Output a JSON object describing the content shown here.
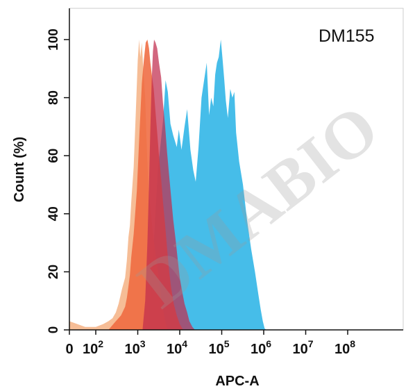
{
  "watermark": {
    "text": "DMABIO",
    "color": "#9a9a9a"
  },
  "chart_data": {
    "type": "area",
    "title": "DM155",
    "xlabel": "APC-A",
    "ylabel": "Count  (%)",
    "x_scale": "biexponential",
    "xlim": [
      0,
      100000000
    ],
    "ylim": [
      0,
      100
    ],
    "x_ticks": [
      {
        "value": 0,
        "base": "0",
        "exp": ""
      },
      {
        "value": 100,
        "base": "10",
        "exp": "2"
      },
      {
        "value": 1000,
        "base": "10",
        "exp": "3"
      },
      {
        "value": 10000,
        "base": "10",
        "exp": "4"
      },
      {
        "value": 100000,
        "base": "10",
        "exp": "5"
      },
      {
        "value": 1000000,
        "base": "10",
        "exp": "6"
      },
      {
        "value": 10000000,
        "base": "10",
        "exp": "7"
      },
      {
        "value": 100000000,
        "base": "10",
        "exp": "8"
      }
    ],
    "y_ticks": [
      0,
      20,
      40,
      60,
      80,
      100
    ],
    "grid": false,
    "legend": "none",
    "series": [
      {
        "color": "#3cb9e8",
        "opacity": 0.95,
        "points": [
          [
            1700,
            0
          ],
          [
            2200,
            20
          ],
          [
            3000,
            55
          ],
          [
            4000,
            72
          ],
          [
            4600,
            86
          ],
          [
            5200,
            82
          ],
          [
            6000,
            71
          ],
          [
            7000,
            67
          ],
          [
            8500,
            63
          ],
          [
            9500,
            69
          ],
          [
            11000,
            62
          ],
          [
            13000,
            70
          ],
          [
            15000,
            76
          ],
          [
            18000,
            62
          ],
          [
            21000,
            55
          ],
          [
            24000,
            51
          ],
          [
            28000,
            63
          ],
          [
            33000,
            80
          ],
          [
            38000,
            86
          ],
          [
            44000,
            92
          ],
          [
            50000,
            74
          ],
          [
            56000,
            80
          ],
          [
            63000,
            77
          ],
          [
            70000,
            88
          ],
          [
            77000,
            92
          ],
          [
            85000,
            94
          ],
          [
            95000,
            100
          ],
          [
            105000,
            93
          ],
          [
            115000,
            86
          ],
          [
            125000,
            79
          ],
          [
            140000,
            73
          ],
          [
            160000,
            83
          ],
          [
            180000,
            80
          ],
          [
            200000,
            82
          ],
          [
            220000,
            68
          ],
          [
            260000,
            58
          ],
          [
            320000,
            50
          ],
          [
            400000,
            38
          ],
          [
            500000,
            28
          ],
          [
            620000,
            20
          ],
          [
            750000,
            12
          ],
          [
            850000,
            7
          ],
          [
            950000,
            3
          ],
          [
            1050000,
            0.5
          ],
          [
            1150000,
            0
          ]
        ]
      },
      {
        "color": "#f5b184",
        "opacity": 0.85,
        "points": [
          [
            0,
            3
          ],
          [
            30,
            2
          ],
          [
            60,
            1
          ],
          [
            100,
            1
          ],
          [
            150,
            2
          ],
          [
            200,
            3
          ],
          [
            250,
            4
          ],
          [
            300,
            6
          ],
          [
            350,
            9
          ],
          [
            420,
            14
          ],
          [
            500,
            18
          ],
          [
            550,
            24
          ],
          [
            600,
            32
          ],
          [
            650,
            36
          ],
          [
            700,
            44
          ],
          [
            800,
            56
          ],
          [
            900,
            75
          ],
          [
            1000,
            93
          ],
          [
            1080,
            100
          ],
          [
            1150,
            94
          ],
          [
            1250,
            99
          ],
          [
            1350,
            90
          ],
          [
            1500,
            80
          ],
          [
            1650,
            62
          ],
          [
            1800,
            49
          ],
          [
            2000,
            42
          ],
          [
            2200,
            36
          ],
          [
            2500,
            29
          ],
          [
            2900,
            22
          ],
          [
            3400,
            14
          ],
          [
            3900,
            8
          ],
          [
            4500,
            3
          ],
          [
            5200,
            0
          ]
        ]
      },
      {
        "color": "#ef6a40",
        "opacity": 0.88,
        "points": [
          [
            200,
            0
          ],
          [
            300,
            3
          ],
          [
            400,
            5
          ],
          [
            500,
            8
          ],
          [
            550,
            11
          ],
          [
            600,
            15
          ],
          [
            650,
            19
          ],
          [
            700,
            25
          ],
          [
            800,
            33
          ],
          [
            950,
            48
          ],
          [
            1100,
            68
          ],
          [
            1250,
            85
          ],
          [
            1400,
            93
          ],
          [
            1550,
            99
          ],
          [
            1700,
            100
          ],
          [
            1850,
            97
          ],
          [
            2000,
            92
          ],
          [
            2200,
            87
          ],
          [
            2400,
            83
          ],
          [
            2650,
            75
          ],
          [
            2900,
            68
          ],
          [
            3200,
            60
          ],
          [
            3600,
            52
          ],
          [
            4000,
            44
          ],
          [
            4500,
            36
          ],
          [
            5000,
            28
          ],
          [
            5600,
            20
          ],
          [
            6300,
            14
          ],
          [
            7200,
            9
          ],
          [
            8500,
            5
          ],
          [
            10000,
            2
          ],
          [
            12000,
            0
          ]
        ]
      },
      {
        "color": "#c02d4d",
        "opacity": 0.72,
        "points": [
          [
            1300,
            0
          ],
          [
            1500,
            10
          ],
          [
            1700,
            30
          ],
          [
            1850,
            50
          ],
          [
            2000,
            70
          ],
          [
            2150,
            86
          ],
          [
            2300,
            96
          ],
          [
            2450,
            100
          ],
          [
            2650,
            99
          ],
          [
            2900,
            97
          ],
          [
            3200,
            92
          ],
          [
            3600,
            87
          ],
          [
            4000,
            78
          ],
          [
            4500,
            70
          ],
          [
            5000,
            61
          ],
          [
            5600,
            53
          ],
          [
            6300,
            45
          ],
          [
            7000,
            38
          ],
          [
            8000,
            31
          ],
          [
            9000,
            24
          ],
          [
            10000,
            18
          ],
          [
            11500,
            13
          ],
          [
            13000,
            9
          ],
          [
            15000,
            6
          ],
          [
            17000,
            3
          ],
          [
            20000,
            1
          ],
          [
            23000,
            0
          ]
        ]
      }
    ]
  }
}
